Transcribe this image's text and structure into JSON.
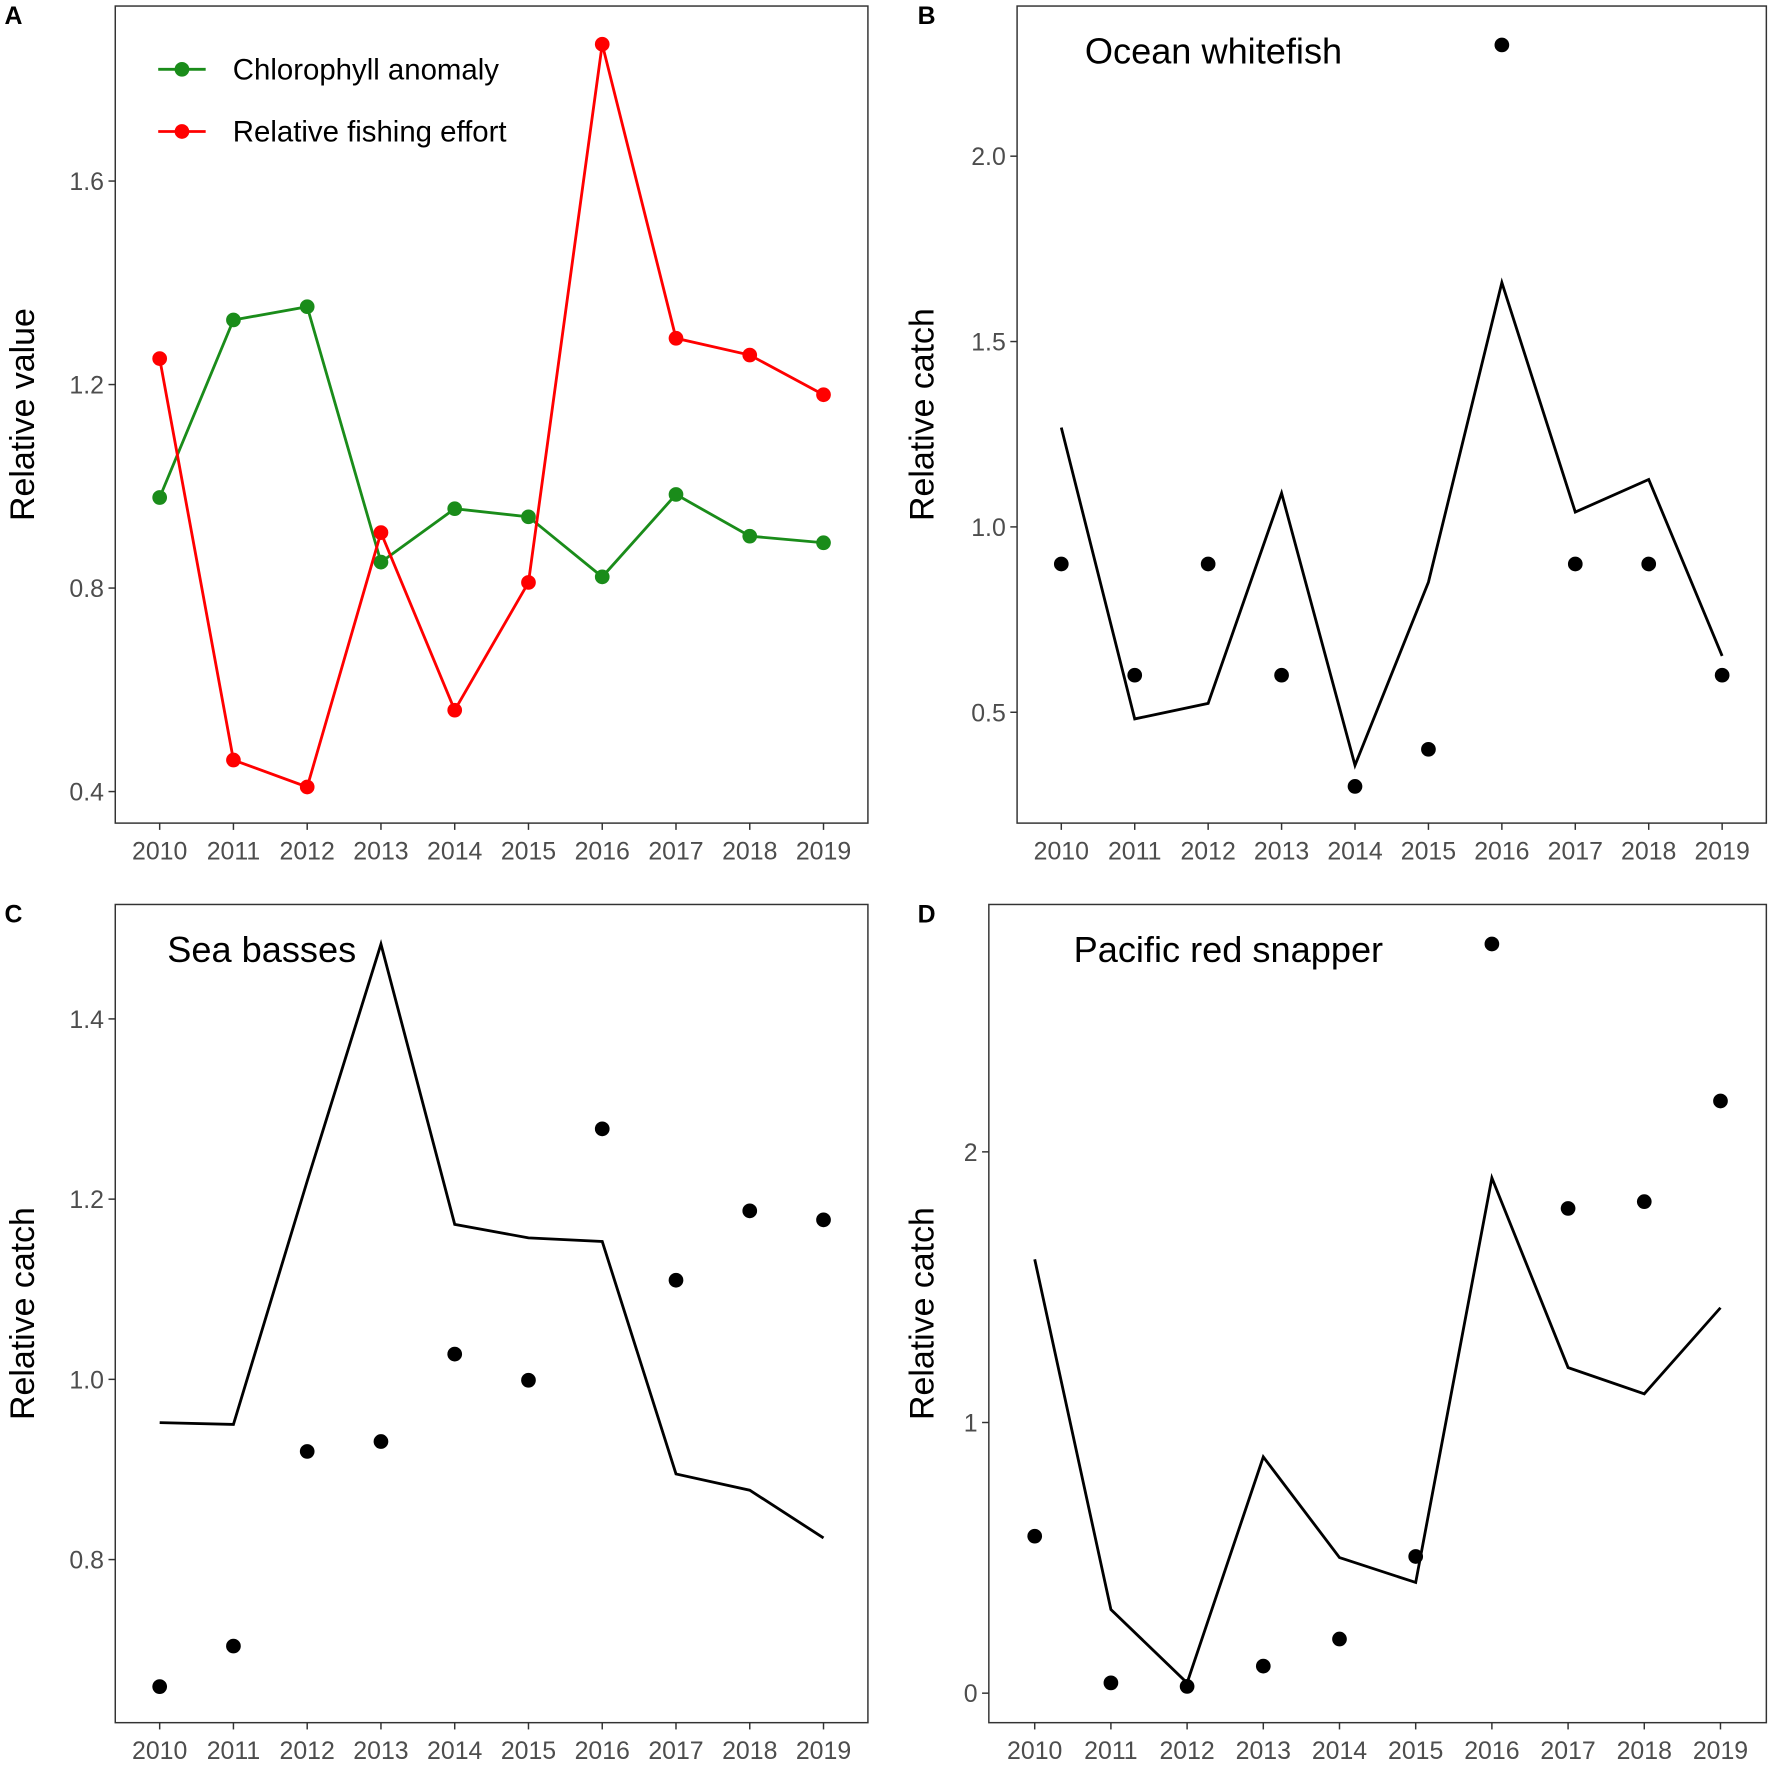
{
  "chart_data": [
    {
      "panel": "A",
      "type": "line",
      "title": "",
      "xlabel": "",
      "ylabel": "Relative value",
      "x": [
        2010,
        2011,
        2012,
        2013,
        2014,
        2015,
        2016,
        2017,
        2018,
        2019
      ],
      "ylim": [
        0.338,
        1.944
      ],
      "yticks": [
        0.4,
        0.8,
        1.2,
        1.6
      ],
      "ytick_labels": [
        "0.4",
        "0.8",
        "1.2",
        "1.6"
      ],
      "legend_position": "top-left",
      "series": [
        {
          "name": "Chlorophyll anomaly",
          "color": "#1a8c1a",
          "markers": true,
          "values": [
            0.978,
            1.327,
            1.353,
            0.851,
            0.956,
            0.94,
            0.822,
            0.984,
            0.902,
            0.889
          ]
        },
        {
          "name": "Relative fishing effort",
          "color": "#ff0000",
          "markers": true,
          "values": [
            1.251,
            0.462,
            0.409,
            0.909,
            0.56,
            0.811,
            1.869,
            1.291,
            1.258,
            1.18
          ]
        }
      ]
    },
    {
      "panel": "B",
      "type": "line+scatter",
      "title": "Ocean whitefish",
      "xlabel": "",
      "ylabel": "Relative catch",
      "x": [
        2010,
        2011,
        2012,
        2013,
        2014,
        2015,
        2016,
        2017,
        2018,
        2019
      ],
      "ylim": [
        0.201,
        2.405
      ],
      "yticks": [
        0.5,
        1.0,
        1.5,
        2.0
      ],
      "ytick_labels": [
        "0.5",
        "1.0",
        "1.5",
        "2.0"
      ],
      "line": [
        1.268,
        0.482,
        0.524,
        1.091,
        0.357,
        0.851,
        1.659,
        1.04,
        1.128,
        0.652
      ],
      "points": [
        0.9,
        0.6,
        0.9,
        0.6,
        0.3,
        0.4,
        2.3,
        0.9,
        0.9,
        0.6
      ]
    },
    {
      "panel": "C",
      "type": "line+scatter",
      "title": "Sea basses",
      "xlabel": "",
      "ylabel": "Relative catch",
      "x": [
        2010,
        2011,
        2012,
        2013,
        2014,
        2015,
        2016,
        2017,
        2018,
        2019
      ],
      "ylim": [
        0.619,
        1.527
      ],
      "yticks": [
        0.8,
        1.0,
        1.2,
        1.4
      ],
      "ytick_labels": [
        "0.8",
        "1.0",
        "1.2",
        "1.4"
      ],
      "line": [
        0.952,
        0.95,
        1.22,
        1.483,
        1.172,
        1.157,
        1.153,
        0.895,
        0.877,
        0.824
      ],
      "points": [
        0.659,
        0.704,
        0.92,
        0.931,
        1.028,
        0.999,
        1.278,
        1.11,
        1.187,
        1.177
      ]
    },
    {
      "panel": "D",
      "type": "line+scatter",
      "title": "Pacific red snapper",
      "xlabel": "",
      "ylabel": "Relative catch",
      "x": [
        2010,
        2011,
        2012,
        2013,
        2014,
        2015,
        2016,
        2017,
        2018,
        2019
      ],
      "ylim": [
        -0.109,
        2.914
      ],
      "yticks": [
        0,
        1,
        2
      ],
      "ytick_labels": [
        "0",
        "1",
        "2"
      ],
      "line": [
        1.603,
        0.309,
        0.038,
        0.873,
        0.501,
        0.409,
        1.904,
        1.203,
        1.106,
        1.424
      ],
      "points": [
        0.58,
        0.038,
        0.025,
        0.1,
        0.2,
        0.505,
        2.768,
        1.791,
        1.816,
        2.188
      ]
    }
  ]
}
